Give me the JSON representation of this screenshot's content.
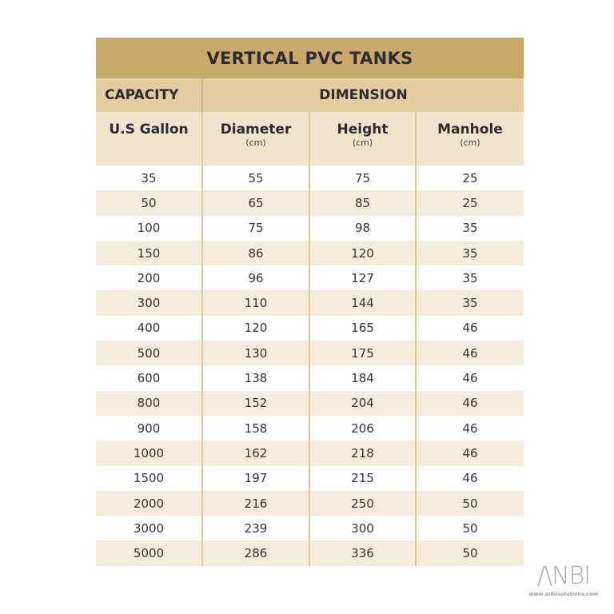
{
  "title": "VERTICAL PVC TANKS",
  "group_headers": {
    "capacity": "CAPACITY",
    "dimension": "DIMENSION"
  },
  "columns": [
    {
      "name": "U.S Gallon",
      "unit": ""
    },
    {
      "name": "Diameter",
      "unit": "(cm)"
    },
    {
      "name": "Height",
      "unit": "(cm)"
    },
    {
      "name": "Manhole",
      "unit": "(cm)"
    }
  ],
  "rows": [
    [
      "35",
      "55",
      "75",
      "25"
    ],
    [
      "50",
      "65",
      "85",
      "25"
    ],
    [
      "100",
      "75",
      "98",
      "35"
    ],
    [
      "150",
      "86",
      "120",
      "35"
    ],
    [
      "200",
      "96",
      "127",
      "35"
    ],
    [
      "300",
      "110",
      "144",
      "35"
    ],
    [
      "400",
      "120",
      "165",
      "46"
    ],
    [
      "500",
      "130",
      "175",
      "46"
    ],
    [
      "600",
      "138",
      "184",
      "46"
    ],
    [
      "800",
      "152",
      "204",
      "46"
    ],
    [
      "900",
      "158",
      "206",
      "46"
    ],
    [
      "1000",
      "162",
      "218",
      "46"
    ],
    [
      "1500",
      "197",
      "215",
      "46"
    ],
    [
      "2000",
      "216",
      "250",
      "50"
    ],
    [
      "3000",
      "239",
      "300",
      "50"
    ],
    [
      "5000",
      "286",
      "336",
      "50"
    ]
  ],
  "logo": {
    "text": "ANBI",
    "url": "www.anbisolutions.com"
  },
  "colors": {
    "title_bg": "#c8a96b",
    "header_bg": "#e2cca0",
    "subheader_bg": "#f1e4cd",
    "alt_row": "#f6ecdc",
    "text": "#2e2a33"
  }
}
